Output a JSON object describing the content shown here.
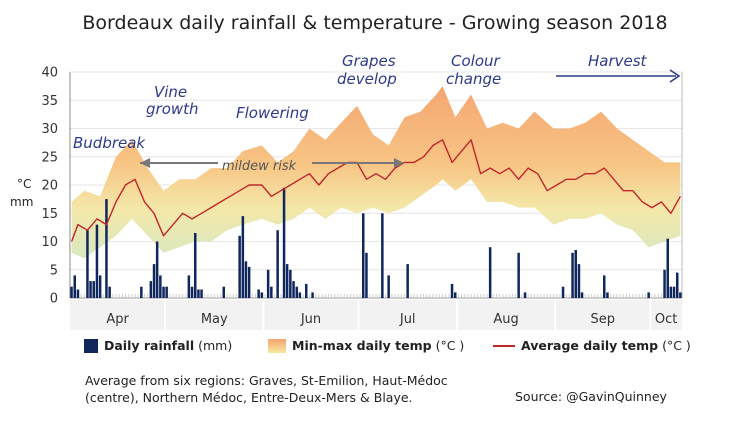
{
  "chart_data": {
    "type": "bar+area+line",
    "title": "Bordeaux daily rainfall & temperature - Growing season 2018",
    "y_unit_labels": [
      "°C",
      "mm"
    ],
    "ylim": [
      0,
      40
    ],
    "yticks": [
      "0",
      "5",
      "10",
      "15",
      "20",
      "25",
      "30",
      "35",
      "40"
    ],
    "months": [
      "Apr",
      "May",
      "Jun",
      "Jul",
      "Aug",
      "Sep",
      "Oct"
    ],
    "date_range": [
      "2018-04-01",
      "2018-10-10"
    ],
    "series": [
      {
        "name": "Daily rainfall",
        "unit": "(mm)",
        "kind": "bar",
        "color": "#10275e",
        "points": [
          [
            "04-01",
            2
          ],
          [
            "04-02",
            4
          ],
          [
            "04-03",
            1.5
          ],
          [
            "04-06",
            12
          ],
          [
            "04-07",
            3
          ],
          [
            "04-08",
            3
          ],
          [
            "04-09",
            13
          ],
          [
            "04-10",
            4
          ],
          [
            "04-12",
            17.5
          ],
          [
            "04-13",
            2
          ],
          [
            "04-23",
            2
          ],
          [
            "04-26",
            3
          ],
          [
            "04-27",
            6
          ],
          [
            "04-28",
            10
          ],
          [
            "04-29",
            4
          ],
          [
            "04-30",
            2
          ],
          [
            "05-01",
            2
          ],
          [
            "05-08",
            4
          ],
          [
            "05-09",
            2
          ],
          [
            "05-10",
            11.5
          ],
          [
            "05-11",
            1.5
          ],
          [
            "05-12",
            1.5
          ],
          [
            "05-19",
            2
          ],
          [
            "05-24",
            11
          ],
          [
            "05-25",
            14.5
          ],
          [
            "05-26",
            6.5
          ],
          [
            "05-27",
            5.5
          ],
          [
            "05-30",
            1.5
          ],
          [
            "05-31",
            1
          ],
          [
            "06-02",
            5
          ],
          [
            "06-03",
            2
          ],
          [
            "06-05",
            12
          ],
          [
            "06-07",
            19.5
          ],
          [
            "06-08",
            6
          ],
          [
            "06-09",
            5
          ],
          [
            "06-10",
            3
          ],
          [
            "06-11",
            2
          ],
          [
            "06-12",
            1
          ],
          [
            "06-14",
            2.5
          ],
          [
            "06-16",
            1
          ],
          [
            "07-02",
            15
          ],
          [
            "07-03",
            8
          ],
          [
            "07-08",
            15
          ],
          [
            "07-10",
            4
          ],
          [
            "07-16",
            6
          ],
          [
            "07-30",
            2.5
          ],
          [
            "07-31",
            1
          ],
          [
            "08-11",
            9
          ],
          [
            "08-20",
            8
          ],
          [
            "08-22",
            1
          ],
          [
            "09-03",
            2
          ],
          [
            "09-06",
            8
          ],
          [
            "09-07",
            8.5
          ],
          [
            "09-08",
            6
          ],
          [
            "09-09",
            1
          ],
          [
            "09-16",
            4
          ],
          [
            "09-17",
            1
          ],
          [
            "09-30",
            1
          ],
          [
            "10-05",
            5
          ],
          [
            "10-06",
            10.5
          ],
          [
            "10-07",
            2
          ],
          [
            "10-08",
            2
          ],
          [
            "10-09",
            4.5
          ],
          [
            "10-10",
            1
          ]
        ]
      },
      {
        "name": "Min-max daily temp",
        "unit": "(°C )",
        "kind": "range-area",
        "color_top": "#f4a470",
        "color_bottom": "#cfe4b8",
        "points": [
          [
            "04-01",
            8,
            17
          ],
          [
            "04-05",
            7,
            19
          ],
          [
            "04-10",
            9,
            18
          ],
          [
            "04-15",
            11,
            25
          ],
          [
            "04-20",
            14,
            28
          ],
          [
            "04-25",
            11,
            23
          ],
          [
            "04-30",
            8,
            19
          ],
          [
            "05-05",
            9,
            21
          ],
          [
            "05-10",
            10,
            21
          ],
          [
            "05-15",
            10,
            23
          ],
          [
            "05-20",
            12,
            23
          ],
          [
            "05-25",
            13,
            26
          ],
          [
            "05-31",
            14,
            27
          ],
          [
            "06-05",
            13,
            24
          ],
          [
            "06-10",
            14,
            26
          ],
          [
            "06-15",
            16,
            30
          ],
          [
            "06-20",
            14,
            28
          ],
          [
            "06-25",
            16,
            31
          ],
          [
            "06-30",
            15,
            34
          ],
          [
            "07-05",
            16,
            29
          ],
          [
            "07-10",
            15,
            27
          ],
          [
            "07-15",
            16,
            32
          ],
          [
            "07-20",
            18,
            33
          ],
          [
            "07-25",
            20,
            36
          ],
          [
            "07-27",
            21,
            37.5
          ],
          [
            "07-31",
            19,
            32
          ],
          [
            "08-05",
            21,
            36
          ],
          [
            "08-10",
            17,
            30
          ],
          [
            "08-15",
            17,
            31
          ],
          [
            "08-20",
            16,
            30
          ],
          [
            "08-25",
            16,
            33
          ],
          [
            "08-31",
            13,
            30
          ],
          [
            "09-05",
            14,
            30
          ],
          [
            "09-10",
            14,
            31
          ],
          [
            "09-15",
            15,
            33
          ],
          [
            "09-20",
            13,
            30
          ],
          [
            "09-25",
            12,
            28
          ],
          [
            "09-30",
            9,
            26
          ],
          [
            "10-05",
            10,
            24
          ],
          [
            "10-10",
            11,
            24
          ]
        ]
      },
      {
        "name": "Average daily temp",
        "unit": "(°C )",
        "kind": "line",
        "color": "#c0262b",
        "points": [
          [
            "04-01",
            10
          ],
          [
            "04-03",
            13
          ],
          [
            "04-06",
            12
          ],
          [
            "04-09",
            14
          ],
          [
            "04-12",
            13
          ],
          [
            "04-15",
            17
          ],
          [
            "04-18",
            20
          ],
          [
            "04-21",
            21
          ],
          [
            "04-24",
            17
          ],
          [
            "04-27",
            15
          ],
          [
            "04-30",
            11
          ],
          [
            "05-03",
            13
          ],
          [
            "05-06",
            15
          ],
          [
            "05-09",
            14
          ],
          [
            "05-12",
            15
          ],
          [
            "05-15",
            16
          ],
          [
            "05-18",
            17
          ],
          [
            "05-21",
            18
          ],
          [
            "05-24",
            19
          ],
          [
            "05-27",
            20
          ],
          [
            "05-31",
            20
          ],
          [
            "06-03",
            18
          ],
          [
            "06-06",
            19
          ],
          [
            "06-09",
            20
          ],
          [
            "06-12",
            21
          ],
          [
            "06-15",
            22
          ],
          [
            "06-18",
            20
          ],
          [
            "06-21",
            22
          ],
          [
            "06-24",
            23
          ],
          [
            "06-27",
            24
          ],
          [
            "06-30",
            24
          ],
          [
            "07-03",
            21
          ],
          [
            "07-06",
            22
          ],
          [
            "07-09",
            21
          ],
          [
            "07-12",
            23
          ],
          [
            "07-15",
            24
          ],
          [
            "07-18",
            24
          ],
          [
            "07-21",
            25
          ],
          [
            "07-24",
            27
          ],
          [
            "07-27",
            28
          ],
          [
            "07-30",
            24
          ],
          [
            "08-02",
            26
          ],
          [
            "08-05",
            28
          ],
          [
            "08-08",
            22
          ],
          [
            "08-11",
            23
          ],
          [
            "08-14",
            22
          ],
          [
            "08-17",
            23
          ],
          [
            "08-20",
            21
          ],
          [
            "08-23",
            23
          ],
          [
            "08-26",
            22
          ],
          [
            "08-29",
            19
          ],
          [
            "09-01",
            20
          ],
          [
            "09-04",
            21
          ],
          [
            "09-07",
            21
          ],
          [
            "09-10",
            22
          ],
          [
            "09-13",
            22
          ],
          [
            "09-16",
            23
          ],
          [
            "09-19",
            21
          ],
          [
            "09-22",
            19
          ],
          [
            "09-25",
            19
          ],
          [
            "09-28",
            17
          ],
          [
            "10-01",
            16
          ],
          [
            "10-04",
            17
          ],
          [
            "10-07",
            15
          ],
          [
            "10-10",
            18
          ]
        ]
      }
    ],
    "annotations": {
      "budbreak": "Budbreak",
      "vine_growth_1": "Vine",
      "vine_growth_2": "growth",
      "flowering": "Flowering",
      "grapes_develop_1": "Grapes",
      "grapes_develop_2": "develop",
      "colour_change_1": "Colour",
      "colour_change_2": "change",
      "harvest": "Harvest",
      "mildew_risk": "mildew risk"
    },
    "legend": {
      "rain_label": "Daily rainfall",
      "rain_unit": "(mm)",
      "range_label": "Min-max daily temp",
      "range_unit": "(°C )",
      "avg_label": "Average daily temp",
      "avg_unit": "(°C )"
    }
  },
  "footnote": {
    "line1": "Average from six regions: Graves, St-Emilion, Haut-Médoc",
    "line2": "(centre), Northern Médoc, Entre-Deux-Mers & Blaye.",
    "source": "Source: @GavinQuinney"
  },
  "colors": {
    "annotation": "#2d3a8c",
    "rain": "#10275e",
    "avg": "#c0262b"
  }
}
